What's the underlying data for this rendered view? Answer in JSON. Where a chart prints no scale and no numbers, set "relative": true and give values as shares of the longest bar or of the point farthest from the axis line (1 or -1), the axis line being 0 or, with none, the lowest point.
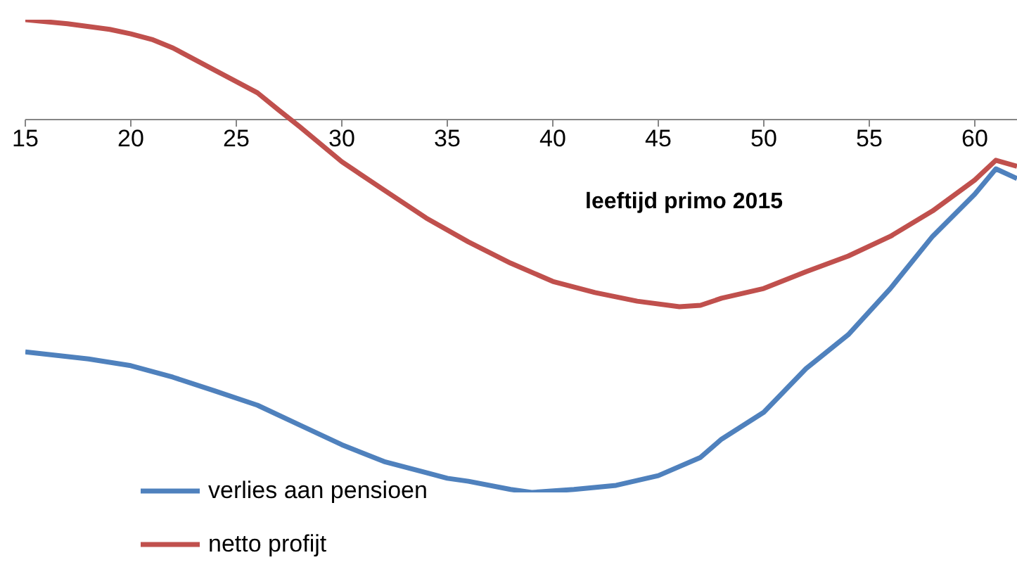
{
  "chart_data": {
    "type": "line",
    "relative": true,
    "xlabel": "leeftijd primo 2015",
    "xlim": [
      15,
      62
    ],
    "xticks": [
      15,
      20,
      25,
      30,
      35,
      40,
      45,
      50,
      55,
      60
    ],
    "grid": false,
    "legend": "bottom left",
    "marker": "none",
    "line_style": "solid",
    "series": [
      {
        "name": "verlies aan pensioen",
        "color": "#4f81bd",
        "x": [
          15,
          18,
          20,
          22,
          24,
          26,
          28,
          30,
          32,
          34,
          35,
          36,
          38,
          39,
          41,
          43,
          45,
          47,
          48,
          50,
          52,
          54,
          56,
          58,
          60,
          61,
          62
        ],
        "values": [
          -0.623,
          -0.642,
          -0.66,
          -0.691,
          -0.728,
          -0.766,
          -0.819,
          -0.872,
          -0.917,
          -0.947,
          -0.962,
          -0.97,
          -0.992,
          -1,
          -0.992,
          -0.981,
          -0.955,
          -0.906,
          -0.857,
          -0.785,
          -0.668,
          -0.577,
          -0.453,
          -0.313,
          -0.2,
          -0.132,
          -0.158
        ]
      },
      {
        "name": "netto profijt",
        "color": "#c0504d",
        "x": [
          15,
          17,
          19,
          20,
          21,
          22,
          24,
          26,
          27,
          28,
          30,
          32,
          34,
          36,
          38,
          40,
          42,
          44,
          46,
          47,
          48,
          50,
          52,
          54,
          56,
          58,
          60,
          61,
          62
        ],
        "values": [
          0.268,
          0.257,
          0.242,
          0.23,
          0.215,
          0.192,
          0.132,
          0.072,
          0.026,
          -0.019,
          -0.113,
          -0.189,
          -0.264,
          -0.328,
          -0.385,
          -0.434,
          -0.464,
          -0.487,
          -0.502,
          -0.498,
          -0.479,
          -0.453,
          -0.408,
          -0.366,
          -0.313,
          -0.245,
          -0.162,
          -0.109,
          -0.125
        ]
      }
    ]
  }
}
